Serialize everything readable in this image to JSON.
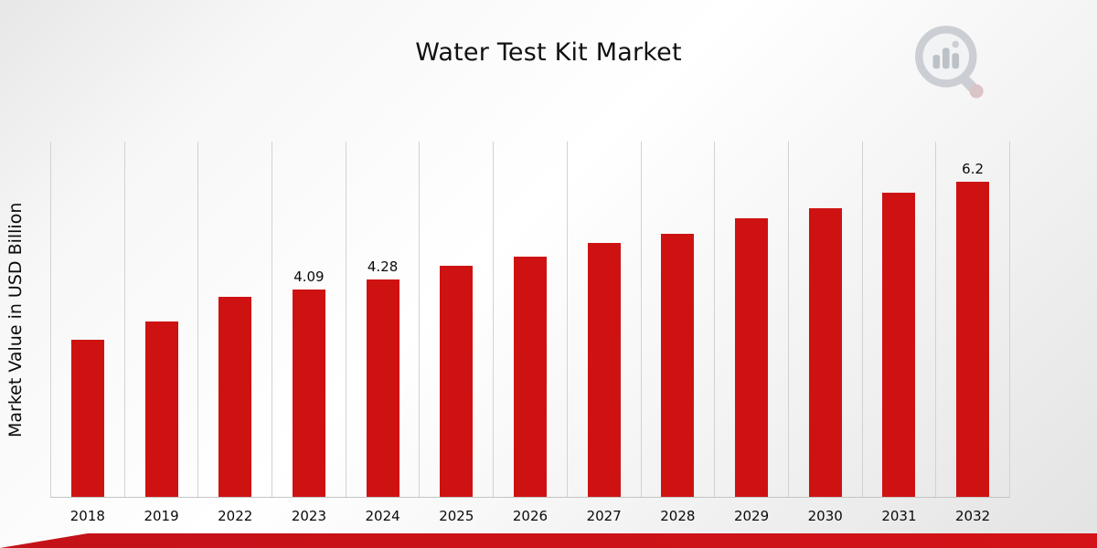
{
  "page": {
    "title": "Water Test Kit Market",
    "ribbon_color": "#C31218",
    "background_top": "#e7e7e7",
    "background_center": "#ffffff"
  },
  "icons": {
    "logo": "magnifier-bar-chart-icon"
  },
  "chart_data": {
    "type": "bar",
    "title": "Water Test Kit Market",
    "xlabel": "",
    "ylabel": "Market Value in USD Billion",
    "categories": [
      "2018",
      "2019",
      "2022",
      "2023",
      "2024",
      "2025",
      "2026",
      "2027",
      "2028",
      "2029",
      "2030",
      "2031",
      "2032"
    ],
    "values": [
      3.1,
      3.45,
      3.95,
      4.09,
      4.28,
      4.55,
      4.74,
      5.0,
      5.19,
      5.48,
      5.69,
      6.0,
      6.2
    ],
    "data_labels": [
      "",
      "",
      "",
      "4.09",
      "4.28",
      "",
      "",
      "",
      "",
      "",
      "",
      "",
      "6.2"
    ],
    "bar_color": "#CE1212",
    "ylim": [
      0,
      7
    ],
    "grid": "vertical",
    "legend": "none"
  }
}
